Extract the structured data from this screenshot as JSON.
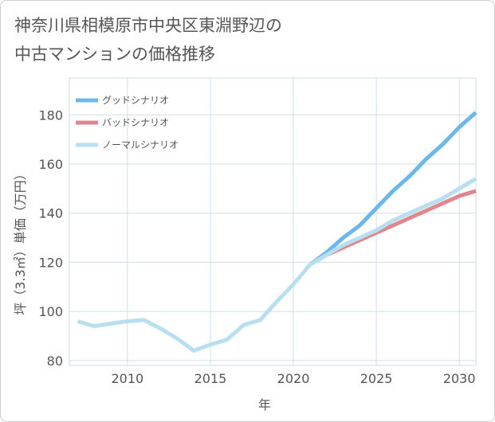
{
  "title_lines": [
    "神奈川県相模原市中央区東淵野辺の",
    "中古マンションの価格推移"
  ],
  "chart_data": {
    "type": "line",
    "title": "神奈川県相模原市中央区東淵野辺の中古マンションの価格推移",
    "xlabel": "年",
    "ylabel": "坪（3.3㎡）単価（万円）",
    "xlim": [
      2006.5,
      2031
    ],
    "ylim": [
      78,
      195
    ],
    "xticks": [
      2010,
      2015,
      2020,
      2025,
      2030
    ],
    "yticks": [
      80,
      100,
      120,
      140,
      160,
      180
    ],
    "grid": true,
    "legend_position": "top-left",
    "series": [
      {
        "name": "グッドシナリオ",
        "color": "#6cb8ec",
        "x": [
          2021,
          2022,
          2023,
          2024,
          2025,
          2026,
          2027,
          2028,
          2029,
          2030,
          2031
        ],
        "y": [
          119,
          124,
          130,
          135,
          142,
          149,
          155,
          162,
          168,
          175,
          181
        ]
      },
      {
        "name": "バッドシナリオ",
        "color": "#e0868c",
        "x": [
          2021,
          2022,
          2023,
          2024,
          2025,
          2026,
          2027,
          2028,
          2029,
          2030,
          2031
        ],
        "y": [
          119,
          123,
          126,
          129,
          132,
          135,
          138,
          141,
          144,
          147,
          149
        ]
      },
      {
        "name": "ノーマルシナリオ",
        "color": "#b7dff0",
        "x": [
          2007,
          2008,
          2009,
          2010,
          2011,
          2012,
          2013,
          2014,
          2015,
          2016,
          2017,
          2018,
          2019,
          2020,
          2021,
          2022,
          2023,
          2024,
          2025,
          2026,
          2027,
          2028,
          2029,
          2030,
          2031
        ],
        "y": [
          96,
          94,
          95,
          96,
          96.5,
          93,
          89,
          84,
          86.5,
          88.5,
          94.5,
          96.5,
          104,
          111,
          119,
          123,
          127,
          130,
          133,
          137,
          140,
          143,
          146,
          150,
          154
        ]
      }
    ]
  }
}
